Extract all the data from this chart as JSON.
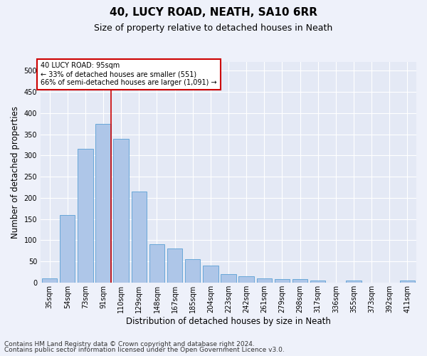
{
  "title": "40, LUCY ROAD, NEATH, SA10 6RR",
  "subtitle": "Size of property relative to detached houses in Neath",
  "xlabel": "Distribution of detached houses by size in Neath",
  "ylabel": "Number of detached properties",
  "bar_labels": [
    "35sqm",
    "54sqm",
    "73sqm",
    "91sqm",
    "110sqm",
    "129sqm",
    "148sqm",
    "167sqm",
    "185sqm",
    "204sqm",
    "223sqm",
    "242sqm",
    "261sqm",
    "279sqm",
    "298sqm",
    "317sqm",
    "336sqm",
    "355sqm",
    "373sqm",
    "392sqm",
    "411sqm"
  ],
  "bar_values": [
    10,
    160,
    315,
    375,
    340,
    215,
    90,
    80,
    55,
    40,
    20,
    15,
    10,
    8,
    8,
    5,
    0,
    5,
    0,
    0,
    5
  ],
  "bar_color": "#aec6e8",
  "bar_edgecolor": "#5a9fd4",
  "property_line_bin": 3,
  "property_sqm": 95,
  "annotation_line1": "40 LUCY ROAD: 95sqm",
  "annotation_line2": "← 33% of detached houses are smaller (551)",
  "annotation_line3": "66% of semi-detached houses are larger (1,091) →",
  "annotation_box_color": "#ffffff",
  "annotation_box_edgecolor": "#cc0000",
  "vline_color": "#cc0000",
  "ylim": [
    0,
    520
  ],
  "yticks": [
    0,
    50,
    100,
    150,
    200,
    250,
    300,
    350,
    400,
    450,
    500
  ],
  "footer_line1": "Contains HM Land Registry data © Crown copyright and database right 2024.",
  "footer_line2": "Contains public sector information licensed under the Open Government Licence v3.0.",
  "background_color": "#eef1fa",
  "plot_bg_color": "#e4e9f5",
  "grid_color": "#ffffff",
  "title_fontsize": 11,
  "subtitle_fontsize": 9,
  "axis_label_fontsize": 8.5,
  "tick_fontsize": 7,
  "annotation_fontsize": 7,
  "footer_fontsize": 6.5
}
